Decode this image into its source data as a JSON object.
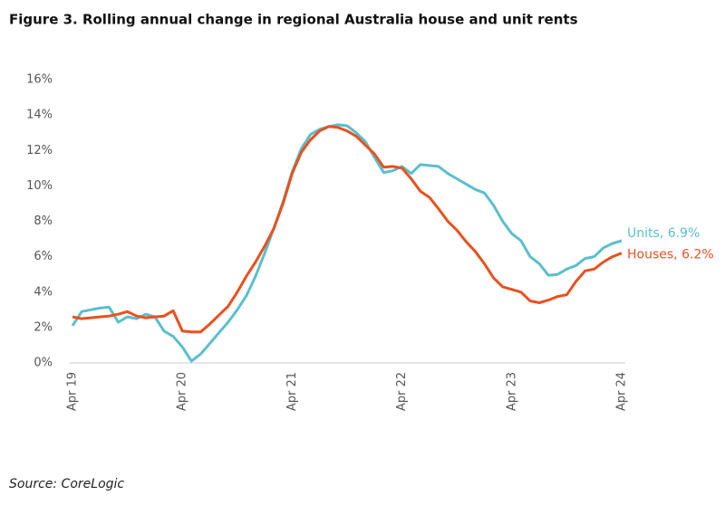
{
  "chart_data": {
    "type": "line",
    "title": "Figure 3. Rolling annual change in regional Australia house and unit rents",
    "source": "Source: CoreLogic",
    "categories": [
      "Apr 19",
      null,
      null,
      null,
      null,
      null,
      null,
      null,
      null,
      null,
      null,
      null,
      "Apr 20",
      null,
      null,
      null,
      null,
      null,
      null,
      null,
      null,
      null,
      null,
      null,
      "Apr 21",
      null,
      null,
      null,
      null,
      null,
      null,
      null,
      null,
      null,
      null,
      null,
      "Apr 22",
      null,
      null,
      null,
      null,
      null,
      null,
      null,
      null,
      null,
      null,
      null,
      "Apr 23",
      null,
      null,
      null,
      null,
      null,
      null,
      null,
      null,
      null,
      null,
      null,
      "Apr 24"
    ],
    "series": [
      {
        "name": "Units, 6.9%",
        "color": "#5bbfcc",
        "values": [
          2.1,
          2.9,
          3.0,
          3.1,
          3.15,
          2.3,
          2.6,
          2.5,
          2.75,
          2.6,
          1.8,
          1.5,
          0.9,
          0.1,
          0.5,
          1.1,
          1.7,
          2.3,
          3.0,
          3.8,
          4.9,
          6.2,
          7.6,
          9.1,
          10.8,
          12.1,
          12.9,
          13.2,
          13.35,
          13.45,
          13.4,
          13.0,
          12.5,
          11.6,
          10.75,
          10.85,
          11.1,
          10.7,
          11.2,
          11.15,
          11.1,
          10.7,
          10.4,
          10.1,
          9.8,
          9.6,
          8.9,
          8.0,
          7.3,
          6.9,
          6.0,
          5.6,
          4.95,
          5.0,
          5.3,
          5.5,
          5.9,
          6.0,
          6.5,
          6.75,
          6.9
        ]
      },
      {
        "name": "Houses, 6.2%",
        "color": "#e8511f",
        "values": [
          2.6,
          2.5,
          2.55,
          2.6,
          2.65,
          2.75,
          2.9,
          2.65,
          2.55,
          2.6,
          2.65,
          2.95,
          1.8,
          1.75,
          1.75,
          2.2,
          2.7,
          3.2,
          4.0,
          4.9,
          5.7,
          6.6,
          7.6,
          9.0,
          10.7,
          11.9,
          12.6,
          13.1,
          13.35,
          13.3,
          13.1,
          12.8,
          12.3,
          11.8,
          11.05,
          11.1,
          11.0,
          10.4,
          9.7,
          9.35,
          8.7,
          8.0,
          7.5,
          6.85,
          6.3,
          5.6,
          4.8,
          4.3,
          4.15,
          4.0,
          3.5,
          3.4,
          3.55,
          3.75,
          3.85,
          4.6,
          5.2,
          5.3,
          5.7,
          6.0,
          6.2
        ]
      }
    ],
    "ylim": [
      0,
      16
    ],
    "yticks": [
      {
        "value": 0,
        "label": "0%"
      },
      {
        "value": 2,
        "label": "2%"
      },
      {
        "value": 4,
        "label": "4%"
      },
      {
        "value": 6,
        "label": "6%"
      },
      {
        "value": 8,
        "label": "8%"
      },
      {
        "value": 10,
        "label": "10%"
      },
      {
        "value": 12,
        "label": "12%"
      },
      {
        "value": 14,
        "label": "14%"
      },
      {
        "value": 16,
        "label": "16%"
      }
    ],
    "grid": false
  }
}
